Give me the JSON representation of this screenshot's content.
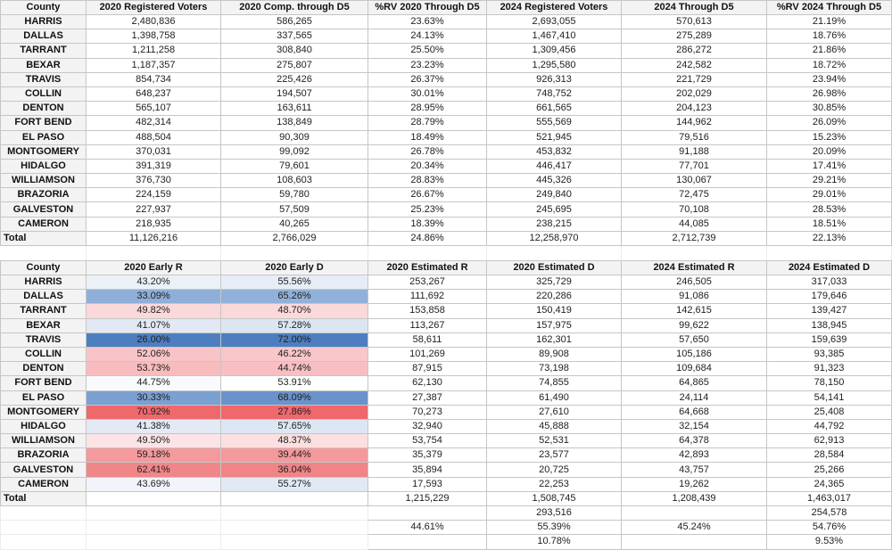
{
  "table1": {
    "headers": [
      "County",
      "2020 Registered Voters",
      "2020 Comp. through D5",
      "%RV 2020 Through D5",
      "2024 Registered Voters",
      "2024 Through D5",
      "%RV 2024 Through D5"
    ],
    "rows": [
      [
        "HARRIS",
        "2,480,836",
        "586,265",
        "23.63%",
        "2,693,055",
        "570,613",
        "21.19%"
      ],
      [
        "DALLAS",
        "1,398,758",
        "337,565",
        "24.13%",
        "1,467,410",
        "275,289",
        "18.76%"
      ],
      [
        "TARRANT",
        "1,211,258",
        "308,840",
        "25.50%",
        "1,309,456",
        "286,272",
        "21.86%"
      ],
      [
        "BEXAR",
        "1,187,357",
        "275,807",
        "23.23%",
        "1,295,580",
        "242,582",
        "18.72%"
      ],
      [
        "TRAVIS",
        "854,734",
        "225,426",
        "26.37%",
        "926,313",
        "221,729",
        "23.94%"
      ],
      [
        "COLLIN",
        "648,237",
        "194,507",
        "30.01%",
        "748,752",
        "202,029",
        "26.98%"
      ],
      [
        "DENTON",
        "565,107",
        "163,611",
        "28.95%",
        "661,565",
        "204,123",
        "30.85%"
      ],
      [
        "FORT BEND",
        "482,314",
        "138,849",
        "28.79%",
        "555,569",
        "144,962",
        "26.09%"
      ],
      [
        "EL PASO",
        "488,504",
        "90,309",
        "18.49%",
        "521,945",
        "79,516",
        "15.23%"
      ],
      [
        "MONTGOMERY",
        "370,031",
        "99,092",
        "26.78%",
        "453,832",
        "91,188",
        "20.09%"
      ],
      [
        "HIDALGO",
        "391,319",
        "79,601",
        "20.34%",
        "446,417",
        "77,701",
        "17.41%"
      ],
      [
        "WILLIAMSON",
        "376,730",
        "108,603",
        "28.83%",
        "445,326",
        "130,067",
        "29.21%"
      ],
      [
        "BRAZORIA",
        "224,159",
        "59,780",
        "26.67%",
        "249,840",
        "72,475",
        "29.01%"
      ],
      [
        "GALVESTON",
        "227,937",
        "57,509",
        "25.23%",
        "245,695",
        "70,108",
        "28.53%"
      ],
      [
        "CAMERON",
        "218,935",
        "40,265",
        "18.39%",
        "238,215",
        "44,085",
        "18.51%"
      ]
    ],
    "total": [
      "Total",
      "11,126,216",
      "2,766,029",
      "24.86%",
      "12,258,970",
      "2,712,739",
      "22.13%"
    ]
  },
  "table2": {
    "headers": [
      "County",
      "2020 Early R",
      "2020 Early D",
      "2020 Estimated R",
      "2020 Estimated D",
      "2024 Estimated R",
      "2024 Estimated D"
    ],
    "rows": [
      {
        "county": "HARRIS",
        "early_r": "43.20%",
        "early_d": "55.56%",
        "est_r_2020": "253,267",
        "est_d_2020": "325,729",
        "est_r_2024": "246,505",
        "est_d_2024": "317,033",
        "r_color": "#ecf1f8",
        "d_color": "#e6edf7"
      },
      {
        "county": "DALLAS",
        "early_r": "33.09%",
        "early_d": "65.26%",
        "est_r_2020": "111,692",
        "est_d_2020": "220,286",
        "est_r_2024": "91,086",
        "est_d_2024": "179,646",
        "r_color": "#8fafd9",
        "d_color": "#92b1da"
      },
      {
        "county": "TARRANT",
        "early_r": "49.82%",
        "early_d": "48.70%",
        "est_r_2020": "153,858",
        "est_d_2020": "150,419",
        "est_r_2024": "142,615",
        "est_d_2024": "139,427",
        "r_color": "#fbd8da",
        "d_color": "#fbd8da"
      },
      {
        "county": "BEXAR",
        "early_r": "41.07%",
        "early_d": "57.28%",
        "est_r_2020": "113,267",
        "est_d_2020": "157,975",
        "est_r_2024": "99,622",
        "est_d_2024": "138,945",
        "r_color": "#e2e9f5",
        "d_color": "#dce6f3"
      },
      {
        "county": "TRAVIS",
        "early_r": "26.00%",
        "early_d": "72.00%",
        "est_r_2020": "58,611",
        "est_d_2020": "162,301",
        "est_r_2024": "57,650",
        "est_d_2024": "159,639",
        "r_color": "#4d7ec0",
        "d_color": "#4d7ec0"
      },
      {
        "county": "COLLIN",
        "early_r": "52.06%",
        "early_d": "46.22%",
        "est_r_2020": "101,269",
        "est_d_2020": "89,908",
        "est_r_2024": "105,186",
        "est_d_2024": "93,385",
        "r_color": "#f9c4c7",
        "d_color": "#f9c6c9"
      },
      {
        "county": "DENTON",
        "early_r": "53.73%",
        "early_d": "44.74%",
        "est_r_2020": "87,915",
        "est_d_2020": "73,198",
        "est_r_2024": "109,684",
        "est_d_2024": "91,323",
        "r_color": "#f8bcbf",
        "d_color": "#f8bfc2"
      },
      {
        "county": "FORT BEND",
        "early_r": "44.75%",
        "early_d": "53.91%",
        "est_r_2020": "62,130",
        "est_d_2020": "74,855",
        "est_r_2024": "64,865",
        "est_d_2024": "78,150",
        "r_color": "#f8fafd",
        "d_color": "#feffff"
      },
      {
        "county": "EL PASO",
        "early_r": "30.33%",
        "early_d": "68.09%",
        "est_r_2020": "27,387",
        "est_d_2020": "61,490",
        "est_r_2024": "24,114",
        "est_d_2024": "54,141",
        "r_color": "#7ba0d2",
        "d_color": "#6b93cb"
      },
      {
        "county": "MONTGOMERY",
        "early_r": "70.92%",
        "early_d": "27.86%",
        "est_r_2020": "70,273",
        "est_d_2020": "27,610",
        "est_r_2024": "64,668",
        "est_d_2024": "25,408",
        "r_color": "#ee686c",
        "d_color": "#ee686c"
      },
      {
        "county": "HIDALGO",
        "early_r": "41.38%",
        "early_d": "57.65%",
        "est_r_2020": "32,940",
        "est_d_2020": "45,888",
        "est_r_2024": "32,154",
        "est_d_2024": "44,792",
        "r_color": "#e3eaf6",
        "d_color": "#dde7f4"
      },
      {
        "county": "WILLIAMSON",
        "early_r": "49.50%",
        "early_d": "48.37%",
        "est_r_2020": "53,754",
        "est_d_2020": "52,531",
        "est_r_2024": "64,378",
        "est_d_2024": "62,913",
        "r_color": "#fce4e6",
        "d_color": "#fbdfe1"
      },
      {
        "county": "BRAZORIA",
        "early_r": "59.18%",
        "early_d": "39.44%",
        "est_r_2020": "35,379",
        "est_d_2020": "23,577",
        "est_r_2024": "42,893",
        "est_d_2024": "28,584",
        "r_color": "#f4999c",
        "d_color": "#f4999c"
      },
      {
        "county": "GALVESTON",
        "early_r": "62.41%",
        "early_d": "36.04%",
        "est_r_2020": "35,894",
        "est_d_2020": "20,725",
        "est_r_2024": "43,757",
        "est_d_2024": "25,266",
        "r_color": "#f18689",
        "d_color": "#f08487"
      },
      {
        "county": "CAMERON",
        "early_r": "43.69%",
        "early_d": "55.27%",
        "est_r_2020": "17,593",
        "est_d_2020": "22,253",
        "est_r_2024": "19,262",
        "est_d_2024": "24,365",
        "r_color": "#f1f5fb",
        "d_color": "#e1e9f5"
      }
    ],
    "total": [
      "Total",
      "",
      "",
      "1,215,229",
      "1,508,745",
      "1,208,439",
      "1,463,017"
    ],
    "extra_rows": [
      [
        "",
        "",
        "",
        "",
        "293,516",
        "",
        "254,578"
      ],
      [
        "",
        "",
        "",
        "44.61%",
        "55.39%",
        "45.24%",
        "54.76%"
      ],
      [
        "",
        "",
        "",
        "",
        "10.78%",
        "",
        "9.53%"
      ]
    ]
  }
}
